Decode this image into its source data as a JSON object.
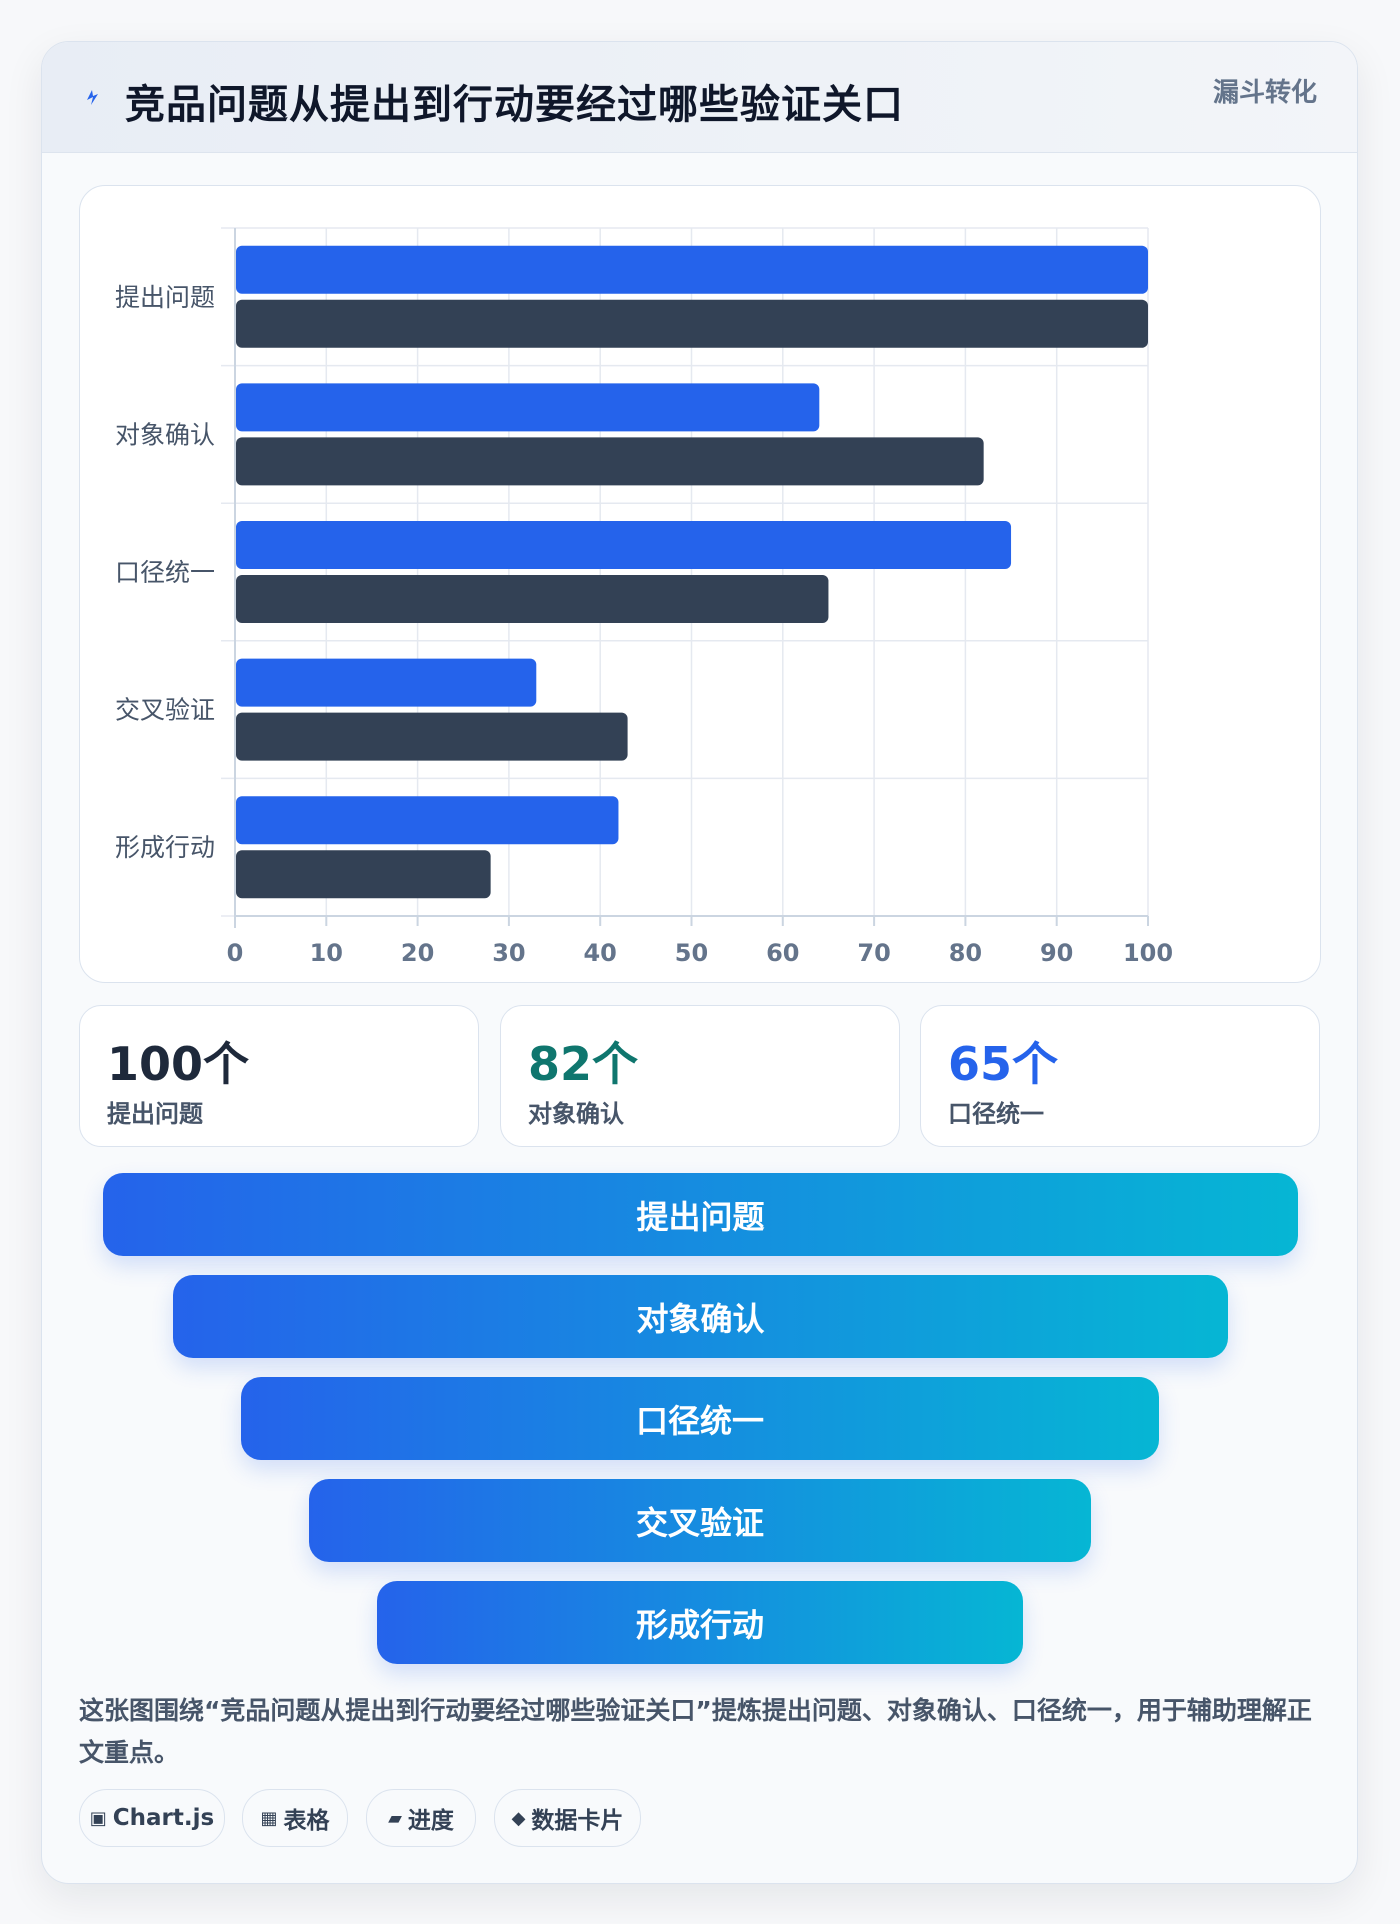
{
  "header": {
    "title": "竞品问题从提出到行动要经过哪些验证关口",
    "tag": "漏斗转化",
    "icon": "bolt-icon"
  },
  "chart_data": {
    "type": "bar",
    "orientation": "horizontal",
    "categories": [
      "提出问题",
      "对象确认",
      "口径统一",
      "交叉验证",
      "形成行动"
    ],
    "series": [
      {
        "values": [
          100,
          64,
          85,
          33,
          42
        ],
        "color": "#2563eb"
      },
      {
        "values": [
          100,
          82,
          65,
          43,
          28
        ],
        "color": "#334155"
      }
    ],
    "xlim": [
      0,
      100
    ],
    "xticks": [
      0,
      10,
      20,
      30,
      40,
      50,
      60,
      70,
      80,
      90,
      100
    ],
    "grid": true,
    "legend": "none"
  },
  "stats": [
    {
      "value": "100个",
      "label": "提出问题",
      "color": "#1e293b"
    },
    {
      "value": "82个",
      "label": "对象确认",
      "color": "#0f766e"
    },
    {
      "value": "65个",
      "label": "口径统一",
      "color": "#2563eb"
    }
  ],
  "funnel": [
    "提出问题",
    "对象确认",
    "口径统一",
    "交叉验证",
    "形成行动"
  ],
  "description": "这张图围绕“竞品问题从提出到行动要经过哪些验证关口”提炼提出问题、对象确认、口径统一，用于辅助理解正文重点。",
  "chips": [
    {
      "icon": "▣",
      "label": "Chart.js"
    },
    {
      "icon": "▦",
      "label": "表格"
    },
    {
      "icon": "▰",
      "label": "进度"
    },
    {
      "icon": "◆",
      "label": "数据卡片"
    }
  ]
}
